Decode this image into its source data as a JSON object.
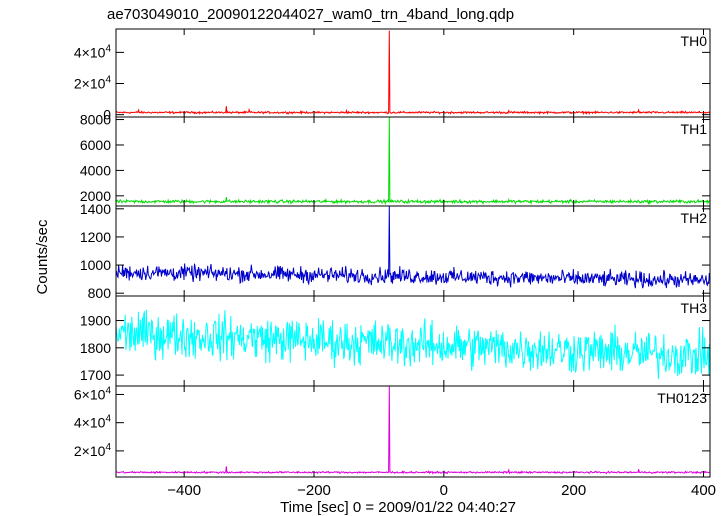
{
  "chart_data": {
    "type": "line",
    "title": "ae703049010_20090122044027_wam0_trn_4band_long.qdp",
    "xlabel": "Time [sec] 0 = 2009/01/22 04:40:27",
    "ylabel": "Counts/sec",
    "xlim": [
      -505,
      410
    ],
    "xticks": [
      -400,
      -200,
      0,
      200,
      400
    ],
    "x_tick_labels": [
      "−400",
      "−200",
      "0",
      "200",
      "400"
    ],
    "grid": false,
    "panels": [
      {
        "name": "TH0",
        "color": "#ff0000",
        "ylim": [
          -1500,
          55000
        ],
        "yticks": [
          0,
          20000,
          40000
        ],
        "ytick_labels": [
          {
            "mantissa": "0",
            "exp": ""
          },
          {
            "mantissa": "2×10",
            "exp": "4"
          },
          {
            "mantissa": "4×10",
            "exp": "4"
          }
        ],
        "baseline": 1400,
        "noise": 300,
        "points": [
          {
            "x": -505,
            "y": 1300
          },
          {
            "x": -470,
            "y": 3000
          },
          {
            "x": -335,
            "y": 5500
          },
          {
            "x": -300,
            "y": 3200
          },
          {
            "x": -150,
            "y": 2600
          },
          {
            "x": -84,
            "y": 54000
          },
          {
            "x": 100,
            "y": 2600
          },
          {
            "x": 300,
            "y": 3000
          },
          {
            "x": 400,
            "y": 1400
          }
        ]
      },
      {
        "name": "TH1",
        "color": "#00dd00",
        "ylim": [
          1200,
          8200
        ],
        "yticks": [
          2000,
          4000,
          6000,
          8000
        ],
        "ytick_labels": [
          {
            "mantissa": "2000",
            "exp": ""
          },
          {
            "mantissa": "4000",
            "exp": ""
          },
          {
            "mantissa": "6000",
            "exp": ""
          },
          {
            "mantissa": "8000",
            "exp": ""
          }
        ],
        "baseline": 1550,
        "noise": 60,
        "points": [
          {
            "x": -505,
            "y": 1500
          },
          {
            "x": -335,
            "y": 1900
          },
          {
            "x": -84,
            "y": 8200
          },
          {
            "x": 100,
            "y": 1700
          },
          {
            "x": 400,
            "y": 1500
          }
        ]
      },
      {
        "name": "TH2",
        "color": "#0000cc",
        "ylim": [
          780,
          1420
        ],
        "yticks": [
          800,
          1000,
          1200,
          1400
        ],
        "ytick_labels": [
          {
            "mantissa": "800",
            "exp": ""
          },
          {
            "mantissa": "1000",
            "exp": ""
          },
          {
            "mantissa": "1200",
            "exp": ""
          },
          {
            "mantissa": "1400",
            "exp": ""
          }
        ],
        "baseline_start": 950,
        "baseline_end": 890,
        "noise": 28,
        "points": [
          {
            "x": -505,
            "y": 960
          },
          {
            "x": -84,
            "y": 1420
          },
          {
            "x": 400,
            "y": 880
          }
        ]
      },
      {
        "name": "TH3",
        "color": "#00ffff",
        "ylim": [
          1660,
          1990
        ],
        "yticks": [
          1700,
          1800,
          1900
        ],
        "ytick_labels": [
          {
            "mantissa": "1700",
            "exp": ""
          },
          {
            "mantissa": "1800",
            "exp": ""
          },
          {
            "mantissa": "1900",
            "exp": ""
          }
        ],
        "baseline_start": 1855,
        "baseline_end": 1770,
        "noise": 40,
        "points": [
          {
            "x": -505,
            "y": 1880
          },
          {
            "x": -300,
            "y": 1860
          },
          {
            "x": 0,
            "y": 1810
          },
          {
            "x": 400,
            "y": 1760
          }
        ]
      },
      {
        "name": "TH0123",
        "color": "#dd00dd",
        "ylim": [
          1500,
          66000
        ],
        "yticks": [
          20000,
          40000,
          60000
        ],
        "ytick_labels": [
          {
            "mantissa": "2×10",
            "exp": "4"
          },
          {
            "mantissa": "4×10",
            "exp": "4"
          },
          {
            "mantissa": "6×10",
            "exp": "4"
          }
        ],
        "baseline": 4800,
        "noise": 300,
        "points": [
          {
            "x": -505,
            "y": 4700
          },
          {
            "x": -335,
            "y": 9000
          },
          {
            "x": -84,
            "y": 66000
          },
          {
            "x": 100,
            "y": 6500
          },
          {
            "x": 300,
            "y": 7000
          },
          {
            "x": 400,
            "y": 4800
          }
        ]
      }
    ]
  }
}
